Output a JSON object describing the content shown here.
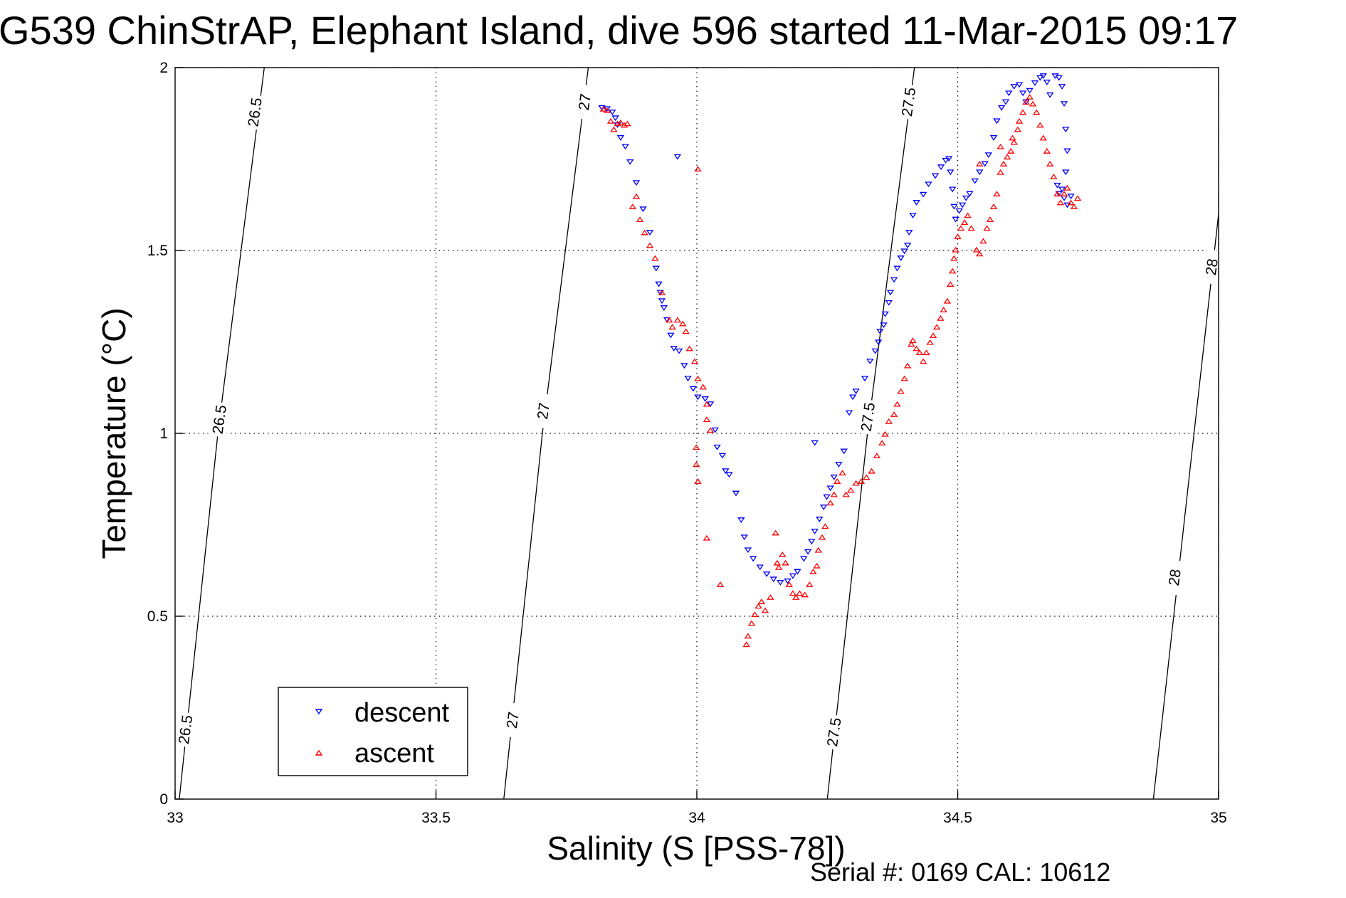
{
  "chart_data": {
    "type": "scatter",
    "title": "G539 ChinStrAP, Elephant Island, dive 596 started 11-Mar-2015 09:17",
    "xlabel": "Salinity (S [PSS-78])",
    "ylabel": "Temperature (°C)",
    "footnote": "Serial #: 0169 CAL: 10612",
    "xlim": [
      33,
      35
    ],
    "ylim": [
      0,
      2
    ],
    "xticks": [
      33,
      33.5,
      34,
      34.5,
      35
    ],
    "xtick_labels": [
      "33",
      "33.5",
      "34",
      "34.5",
      "35"
    ],
    "yticks": [
      0,
      0.5,
      1,
      1.5,
      2
    ],
    "ytick_labels": [
      "0",
      "0.5",
      "1",
      "1.5",
      "2"
    ],
    "grid": true,
    "legend": {
      "placement": "bottom-left",
      "entries": [
        {
          "label": "descent",
          "marker": "triangle-down",
          "color": "#0000ff"
        },
        {
          "label": "ascent",
          "marker": "triangle-up",
          "color": "#ff0000"
        }
      ]
    },
    "density_contours": [
      {
        "level": "26.5",
        "points": [
          [
            33.008,
            0
          ],
          [
            33.082,
            1
          ],
          [
            33.171,
            2
          ]
        ],
        "labels": [
          [
            33.153,
            1.878
          ],
          [
            33.085,
            1.038
          ],
          [
            33.02,
            0.19
          ]
        ]
      },
      {
        "level": "27",
        "points": [
          [
            33.63,
            0
          ],
          [
            33.704,
            1
          ],
          [
            33.792,
            2
          ]
        ],
        "labels": [
          [
            33.785,
            1.906
          ],
          [
            33.706,
            1.061
          ],
          [
            33.647,
            0.216
          ]
        ]
      },
      {
        "level": "27.5",
        "points": [
          [
            34.25,
            0
          ],
          [
            34.327,
            1
          ],
          [
            34.417,
            2
          ]
        ],
        "labels": [
          [
            34.406,
            1.906
          ],
          [
            34.328,
            1.045
          ],
          [
            34.263,
            0.183
          ]
        ]
      },
      {
        "level": "28",
        "points": [
          [
            34.875,
            0
          ],
          [
            34.953,
            1
          ],
          [
            35.0,
            1.6
          ]
        ],
        "labels": [
          [
            34.987,
            1.455
          ],
          [
            34.916,
            0.606
          ]
        ]
      }
    ],
    "series": [
      {
        "name": "descent",
        "color": "#0000ff",
        "marker": "triangle-down",
        "points": [
          [
            33.818,
            1.89
          ],
          [
            33.828,
            1.887
          ],
          [
            33.838,
            1.878
          ],
          [
            33.844,
            1.862
          ],
          [
            33.848,
            1.843
          ],
          [
            33.854,
            1.808
          ],
          [
            33.863,
            1.784
          ],
          [
            33.872,
            1.742
          ],
          [
            33.884,
            1.685
          ],
          [
            33.897,
            1.613
          ],
          [
            33.91,
            1.549
          ],
          [
            33.922,
            1.451
          ],
          [
            33.927,
            1.408
          ],
          [
            33.93,
            1.385
          ],
          [
            33.933,
            1.362
          ],
          [
            33.937,
            1.343
          ],
          [
            33.943,
            1.31
          ],
          [
            33.95,
            1.268
          ],
          [
            33.956,
            1.232
          ],
          [
            33.966,
            1.225
          ],
          [
            33.963,
            1.756
          ],
          [
            33.976,
            1.185
          ],
          [
            33.983,
            1.15
          ],
          [
            33.993,
            1.122
          ],
          [
            34.002,
            1.099
          ],
          [
            34.016,
            1.094
          ],
          [
            34.026,
            1.08
          ],
          [
            34.035,
            1.009
          ],
          [
            34.039,
            0.962
          ],
          [
            34.049,
            0.939
          ],
          [
            34.055,
            0.897
          ],
          [
            34.062,
            0.887
          ],
          [
            34.075,
            0.836
          ],
          [
            34.085,
            0.763
          ],
          [
            34.091,
            0.716
          ],
          [
            34.098,
            0.681
          ],
          [
            34.108,
            0.657
          ],
          [
            34.121,
            0.634
          ],
          [
            34.134,
            0.615
          ],
          [
            34.147,
            0.601
          ],
          [
            34.16,
            0.592
          ],
          [
            34.174,
            0.596
          ],
          [
            34.184,
            0.61
          ],
          [
            34.193,
            0.622
          ],
          [
            34.205,
            0.657
          ],
          [
            34.213,
            0.676
          ],
          [
            34.22,
            0.704
          ],
          [
            34.226,
            0.732
          ],
          [
            34.235,
            0.765
          ],
          [
            34.243,
            0.798
          ],
          [
            34.249,
            0.826
          ],
          [
            34.256,
            0.85
          ],
          [
            34.263,
            0.88
          ],
          [
            34.272,
            0.915
          ],
          [
            34.282,
            0.951
          ],
          [
            34.226,
            0.974
          ],
          [
            34.292,
            1.056
          ],
          [
            34.299,
            1.099
          ],
          [
            34.305,
            1.115
          ],
          [
            34.322,
            1.15
          ],
          [
            34.332,
            1.197
          ],
          [
            34.342,
            1.225
          ],
          [
            34.348,
            1.249
          ],
          [
            34.351,
            1.279
          ],
          [
            34.358,
            1.296
          ],
          [
            34.361,
            1.326
          ],
          [
            34.368,
            1.357
          ],
          [
            34.371,
            1.385
          ],
          [
            34.378,
            1.42
          ],
          [
            34.384,
            1.451
          ],
          [
            34.391,
            1.479
          ],
          [
            34.398,
            1.498
          ],
          [
            34.404,
            1.514
          ],
          [
            34.407,
            1.549
          ],
          [
            34.414,
            1.596
          ],
          [
            34.421,
            1.631
          ],
          [
            34.434,
            1.653
          ],
          [
            34.444,
            1.681
          ],
          [
            34.457,
            1.704
          ],
          [
            34.468,
            1.728
          ],
          [
            34.477,
            1.746
          ],
          [
            34.483,
            1.751
          ],
          [
            34.486,
            1.714
          ],
          [
            34.49,
            1.667
          ],
          [
            34.493,
            1.62
          ],
          [
            34.496,
            1.585
          ],
          [
            34.503,
            1.608
          ],
          [
            34.509,
            1.624
          ],
          [
            34.516,
            1.643
          ],
          [
            34.523,
            1.655
          ],
          [
            34.533,
            1.69
          ],
          [
            34.542,
            1.714
          ],
          [
            34.552,
            1.737
          ],
          [
            34.559,
            1.761
          ],
          [
            34.569,
            1.808
          ],
          [
            34.575,
            1.854
          ],
          [
            34.584,
            1.89
          ],
          [
            34.592,
            1.906
          ],
          [
            34.598,
            1.93
          ],
          [
            34.608,
            1.948
          ],
          [
            34.618,
            1.953
          ],
          [
            34.625,
            1.93
          ],
          [
            34.631,
            1.906
          ],
          [
            34.638,
            1.937
          ],
          [
            34.648,
            1.958
          ],
          [
            34.658,
            1.972
          ],
          [
            34.664,
            1.977
          ],
          [
            34.671,
            1.96
          ],
          [
            34.677,
            1.925
          ],
          [
            34.687,
            1.977
          ],
          [
            34.694,
            1.972
          ],
          [
            34.7,
            1.948
          ],
          [
            34.704,
            1.901
          ],
          [
            34.707,
            1.831
          ],
          [
            34.71,
            1.772
          ],
          [
            34.707,
            1.714
          ],
          [
            34.7,
            1.667
          ],
          [
            34.704,
            1.643
          ],
          [
            34.71,
            1.624
          ],
          [
            34.717,
            1.648
          ],
          [
            34.694,
            1.655
          ],
          [
            34.691,
            1.678
          ]
        ]
      },
      {
        "name": "ascent",
        "color": "#ff0000",
        "marker": "triangle-up",
        "points": [
          [
            33.821,
            1.887
          ],
          [
            33.828,
            1.883
          ],
          [
            33.835,
            1.854
          ],
          [
            33.841,
            1.831
          ],
          [
            33.848,
            1.847
          ],
          [
            33.854,
            1.85
          ],
          [
            33.861,
            1.843
          ],
          [
            33.867,
            1.847
          ],
          [
            33.877,
            1.62
          ],
          [
            33.884,
            1.648
          ],
          [
            33.891,
            1.585
          ],
          [
            33.9,
            1.549
          ],
          [
            33.91,
            1.514
          ],
          [
            33.92,
            1.479
          ],
          [
            33.933,
            1.385
          ],
          [
            33.947,
            1.31
          ],
          [
            33.953,
            1.291
          ],
          [
            33.963,
            1.31
          ],
          [
            33.973,
            1.3
          ],
          [
            33.979,
            1.279
          ],
          [
            33.986,
            1.232
          ],
          [
            33.996,
            1.197
          ],
          [
            34.002,
            1.15
          ],
          [
            34.012,
            1.127
          ],
          [
            34.019,
            1.08
          ],
          [
            34.019,
            1.038
          ],
          [
            34.026,
            1.009
          ],
          [
            34.002,
            1.723
          ],
          [
            33.999,
            0.962
          ],
          [
            33.999,
            0.915
          ],
          [
            34.002,
            0.869
          ],
          [
            34.019,
            0.714
          ],
          [
            34.045,
            0.587
          ],
          [
            34.095,
            0.423
          ],
          [
            34.098,
            0.446
          ],
          [
            34.105,
            0.481
          ],
          [
            34.111,
            0.505
          ],
          [
            34.118,
            0.528
          ],
          [
            34.124,
            0.54
          ],
          [
            34.131,
            0.516
          ],
          [
            34.141,
            0.552
          ],
          [
            34.151,
            0.728
          ],
          [
            34.154,
            0.646
          ],
          [
            34.157,
            0.634
          ],
          [
            34.164,
            0.669
          ],
          [
            34.17,
            0.646
          ],
          [
            34.177,
            0.587
          ],
          [
            34.184,
            0.563
          ],
          [
            34.19,
            0.552
          ],
          [
            34.197,
            0.563
          ],
          [
            34.207,
            0.559
          ],
          [
            34.216,
            0.587
          ],
          [
            34.223,
            0.622
          ],
          [
            34.23,
            0.638
          ],
          [
            34.233,
            0.681
          ],
          [
            34.24,
            0.716
          ],
          [
            34.246,
            0.746
          ],
          [
            34.256,
            0.81
          ],
          [
            34.263,
            0.833
          ],
          [
            34.269,
            0.869
          ],
          [
            34.279,
            0.892
          ],
          [
            34.286,
            0.833
          ],
          [
            34.295,
            0.845
          ],
          [
            34.305,
            0.864
          ],
          [
            34.315,
            0.869
          ],
          [
            34.325,
            0.88
          ],
          [
            34.335,
            0.897
          ],
          [
            34.345,
            0.939
          ],
          [
            34.355,
            0.974
          ],
          [
            34.361,
            0.998
          ],
          [
            34.368,
            1.033
          ],
          [
            34.378,
            1.052
          ],
          [
            34.384,
            1.08
          ],
          [
            34.391,
            1.115
          ],
          [
            34.398,
            1.15
          ],
          [
            34.404,
            1.185
          ],
          [
            34.411,
            1.244
          ],
          [
            34.414,
            1.254
          ],
          [
            34.421,
            1.232
          ],
          [
            34.427,
            1.221
          ],
          [
            34.434,
            1.197
          ],
          [
            34.44,
            1.221
          ],
          [
            34.447,
            1.249
          ],
          [
            34.453,
            1.268
          ],
          [
            34.46,
            1.291
          ],
          [
            34.467,
            1.315
          ],
          [
            34.473,
            1.338
          ],
          [
            34.48,
            1.362
          ],
          [
            34.486,
            1.408
          ],
          [
            34.49,
            1.444
          ],
          [
            34.493,
            1.479
          ],
          [
            34.496,
            1.502
          ],
          [
            34.5,
            1.538
          ],
          [
            34.506,
            1.561
          ],
          [
            34.513,
            1.577
          ],
          [
            34.519,
            1.596
          ],
          [
            34.526,
            1.561
          ],
          [
            34.536,
            1.502
          ],
          [
            34.542,
            1.491
          ],
          [
            34.549,
            1.526
          ],
          [
            34.556,
            1.561
          ],
          [
            34.562,
            1.585
          ],
          [
            34.569,
            1.62
          ],
          [
            34.575,
            1.655
          ],
          [
            34.582,
            1.714
          ],
          [
            34.588,
            1.737
          ],
          [
            34.595,
            1.756
          ],
          [
            34.602,
            1.772
          ],
          [
            34.608,
            1.796
          ],
          [
            34.615,
            1.831
          ],
          [
            34.618,
            1.854
          ],
          [
            34.625,
            1.878
          ],
          [
            34.631,
            1.906
          ],
          [
            34.638,
            1.92
          ],
          [
            34.644,
            1.901
          ],
          [
            34.651,
            1.878
          ],
          [
            34.658,
            1.843
          ],
          [
            34.664,
            1.808
          ],
          [
            34.671,
            1.772
          ],
          [
            34.677,
            1.737
          ],
          [
            34.684,
            1.702
          ],
          [
            34.691,
            1.655
          ],
          [
            34.697,
            1.631
          ],
          [
            34.704,
            1.655
          ],
          [
            34.71,
            1.671
          ],
          [
            34.717,
            1.631
          ],
          [
            34.723,
            1.62
          ],
          [
            34.73,
            1.643
          ],
          [
            34.582,
            1.784
          ],
          [
            34.605,
            1.808
          ],
          [
            34.542,
            1.737
          ]
        ]
      }
    ]
  }
}
